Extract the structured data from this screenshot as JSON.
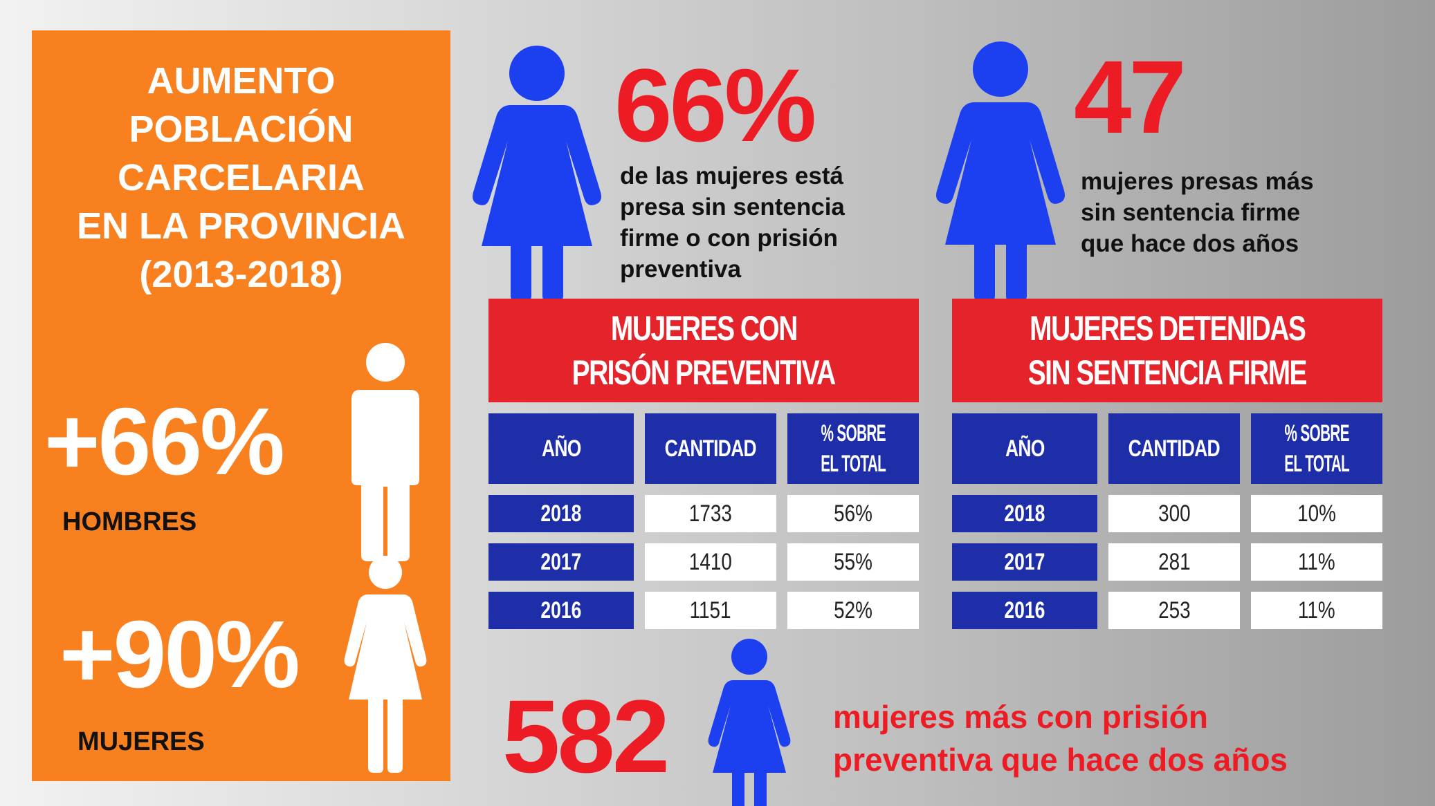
{
  "left_panel": {
    "title_lines": [
      "AUMENTO",
      "POBLACIÓN",
      "CARCELARIA",
      "EN LA PROVINCIA",
      "(2013-2018)"
    ],
    "men_pct": "+66%",
    "men_label": "HOMBRES",
    "women_pct": "+90%",
    "women_label": "MUJERES"
  },
  "stat1": {
    "value": "66%",
    "desc_lines": [
      "de las mujeres está",
      "presa sin sentencia",
      "firme o con prisión",
      "preventiva"
    ]
  },
  "stat2": {
    "value": "47",
    "desc_lines": [
      "mujeres presas más",
      "sin sentencia firme",
      "que hace dos años"
    ]
  },
  "stat3": {
    "value": "582",
    "desc_lines": [
      "mujeres más con prisión",
      "preventiva que hace dos años"
    ]
  },
  "table1": {
    "title_lines": [
      "MUJERES CON",
      "PRISÓN PREVENTIVA"
    ],
    "headers": [
      "AÑO",
      "CANTIDAD",
      [
        "% SOBRE",
        "EL TOTAL"
      ]
    ],
    "rows": [
      {
        "year": "2018",
        "count": "1733",
        "pct": "56%"
      },
      {
        "year": "2017",
        "count": "1410",
        "pct": "55%"
      },
      {
        "year": "2016",
        "count": "1151",
        "pct": "52%"
      }
    ]
  },
  "table2": {
    "title_lines": [
      "MUJERES DETENIDAS",
      "SIN SENTENCIA FIRME"
    ],
    "headers": [
      "AÑO",
      "CANTIDAD",
      [
        "% SOBRE",
        "EL TOTAL"
      ]
    ],
    "rows": [
      {
        "year": "2018",
        "count": "300",
        "pct": "10%"
      },
      {
        "year": "2017",
        "count": "281",
        "pct": "11%"
      },
      {
        "year": "2016",
        "count": "253",
        "pct": "11%"
      }
    ]
  },
  "colors": {
    "orange": "#f9801f",
    "red": "#ed1c24",
    "blue_figure": "#1c3ff0",
    "table_blue": "#1e2ea8",
    "table_red": "#e5232b"
  },
  "icons": [
    "man-icon",
    "woman-icon"
  ]
}
